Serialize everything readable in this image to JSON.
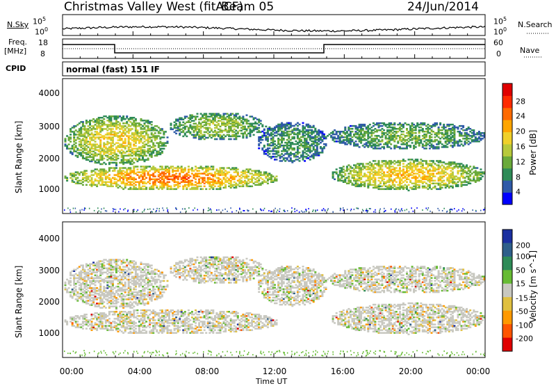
{
  "header": {
    "site": "Christmas Valley West (fitACF)",
    "beam": "Beam 05",
    "date": "24/Jun/2014"
  },
  "noise_panel": {
    "left_label": "N.Sky",
    "right_label": "N.Search",
    "left_ticks": [
      "10^5",
      "10^0"
    ],
    "right_ticks": [
      "10^5",
      "10^0"
    ]
  },
  "freq_panel": {
    "left_label_1": "Freq.",
    "left_label_2": "[MHz]",
    "right_label": "Nave",
    "left_ticks": [
      "18",
      "8"
    ],
    "right_ticks": [
      "60",
      "0"
    ]
  },
  "cpid": {
    "label": "CPID",
    "value": "normal (fast) 151 IF"
  },
  "chart_data": [
    {
      "type": "heatmap",
      "name": "power",
      "ylabel": "Slant Range [km]",
      "yticks": [
        "4000",
        "3000",
        "2000",
        "1000"
      ],
      "colorbar_label": "Power [dB]",
      "colorbar_ticks": [
        "28",
        "24",
        "20",
        "16",
        "12",
        "8",
        "4"
      ],
      "colorbar_colors": [
        "#0000ff",
        "#2f5aa8",
        "#2e8b57",
        "#6aaa3a",
        "#b7c93b",
        "#f0d02a",
        "#ffa500",
        "#ff6a00",
        "#ff2a00",
        "#e00000"
      ],
      "xlim_hours": [
        0,
        24
      ],
      "ylim_km": [
        180,
        4500
      ],
      "regions": [
        {
          "t0": 0.0,
          "t1": 12.3,
          "r0": 900,
          "r1": 1700,
          "center": [
            4.5,
            1350
          ],
          "intensity": 22
        },
        {
          "t0": 0.0,
          "t1": 6.0,
          "r0": 1700,
          "r1": 3300,
          "center": [
            3.8,
            2700
          ],
          "intensity": 16
        },
        {
          "t0": 6.0,
          "t1": 11.5,
          "r0": 2500,
          "r1": 3400,
          "center": [
            8.0,
            3000
          ],
          "intensity": 12
        },
        {
          "t0": 11.0,
          "t1": 15.0,
          "r0": 1800,
          "r1": 3100,
          "center": [
            13.0,
            2700
          ],
          "intensity": 8
        },
        {
          "t0": 15.0,
          "t1": 24.0,
          "r0": 2200,
          "r1": 3100,
          "center": [
            19.0,
            2700
          ],
          "intensity": 10
        },
        {
          "t0": 15.2,
          "t1": 24.0,
          "r0": 900,
          "r1": 1900,
          "center": [
            22.5,
            1000
          ],
          "intensity": 18
        }
      ]
    },
    {
      "type": "heatmap",
      "name": "velocity",
      "xlabel": "Time UT",
      "ylabel": "Slant Range [km]",
      "xticks": [
        "00:00",
        "04:00",
        "08:00",
        "12:00",
        "16:00",
        "20:00",
        "00:00"
      ],
      "yticks": [
        "4000",
        "3000",
        "2000",
        "1000"
      ],
      "colorbar_label": "Velocity [m s^-1]",
      "colorbar_ticks": [
        "200",
        "100",
        "50",
        "15",
        "-15",
        "-50",
        "-100",
        "-200"
      ],
      "colorbar_colors": [
        "#1a2fa0",
        "#2e5f8a",
        "#2e8b57",
        "#66bb33",
        "#c8c8c0",
        "#e0c040",
        "#ff9900",
        "#ff5500",
        "#e00000"
      ],
      "xlim_hours": [
        0,
        24
      ],
      "ylim_km": [
        180,
        4500
      ]
    }
  ]
}
